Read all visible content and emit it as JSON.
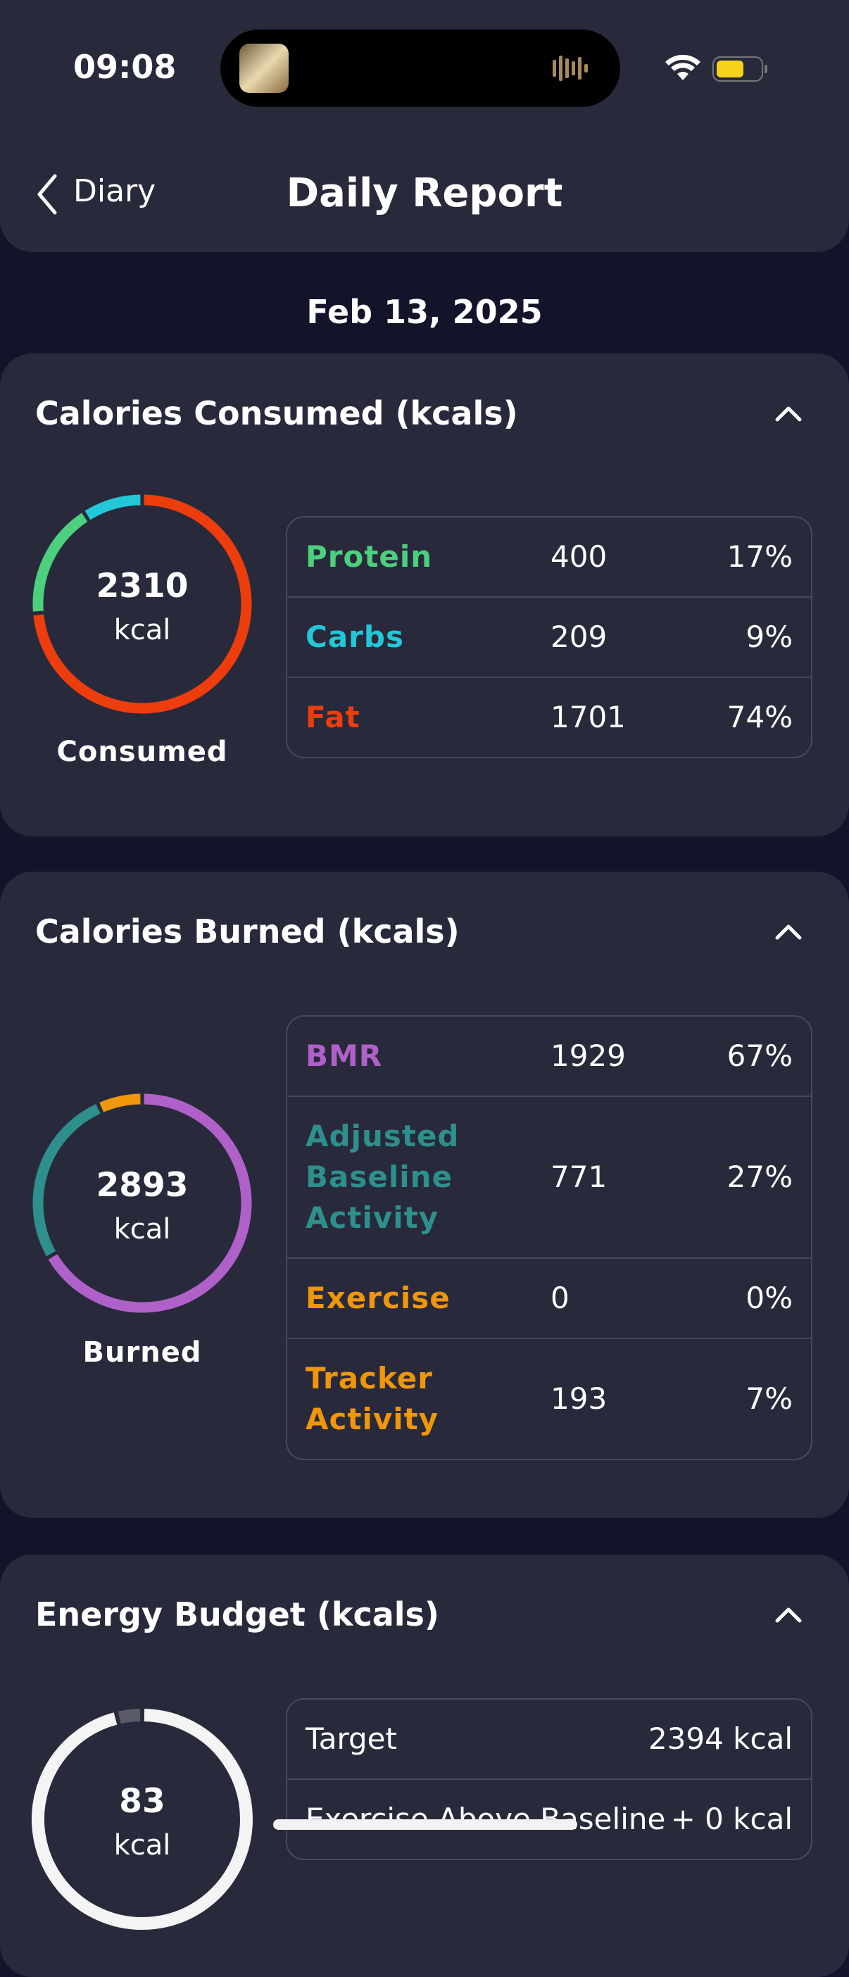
{
  "status_bar": {
    "time": "09:08"
  },
  "header": {
    "back": "Diary",
    "title": "Daily Report"
  },
  "date": "Feb 13, 2025",
  "sections": [
    {
      "title": "Calories Consumed (kcals)",
      "total": "2310",
      "unit": "kcal",
      "caption": "Consumed",
      "rows": [
        {
          "label": "Protein",
          "kcal": "400",
          "percent": "17%",
          "color": "#4cd07d"
        },
        {
          "label": "Carbs",
          "kcal": "209",
          "percent": "9%",
          "color": "#22c8d8"
        },
        {
          "label": "Fat",
          "kcal": "1701",
          "percent": "74%",
          "color": "#ee3d0d"
        }
      ]
    },
    {
      "title": "Calories Burned (kcals)",
      "total": "2893",
      "unit": "kcal",
      "caption": "Burned",
      "rows": [
        {
          "label": "BMR",
          "kcal": "1929",
          "percent": "67%",
          "color": "#b061c9"
        },
        {
          "label": "Adjusted Baseline Activity",
          "kcal": "771",
          "percent": "27%",
          "color": "#2e8f8c"
        },
        {
          "label": "Exercise",
          "kcal": "0",
          "percent": "0%",
          "color": "#f0960a"
        },
        {
          "label": "Tracker Activity",
          "kcal": "193",
          "percent": "7%",
          "color": "#f0960a"
        }
      ]
    },
    {
      "title": "Energy Budget (kcals)",
      "total": "83",
      "unit": "kcal",
      "rows": [
        {
          "label": "Target",
          "value": "2394 kcal"
        },
        {
          "label": "Exercise Above Baseline",
          "value": "+ 0 kcal"
        }
      ]
    }
  ]
}
